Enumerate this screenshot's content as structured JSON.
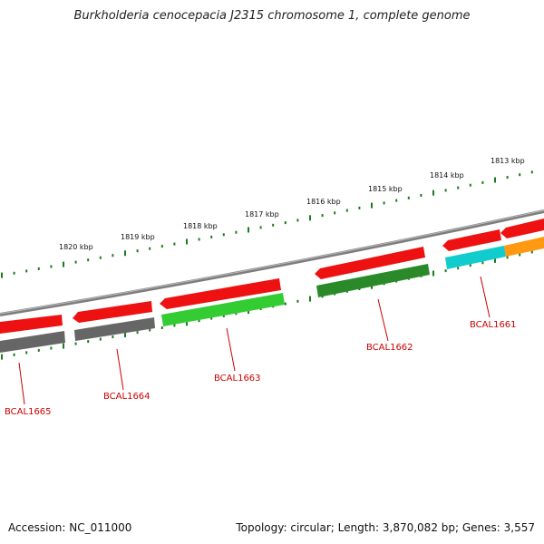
{
  "title": "Burkholderia cenocepacia J2315 chromosome 1, complete genome",
  "footer": {
    "accession": "Accession: NC_011000",
    "summary": "Topology: circular; Length: 3,870,082 bp; Genes: 3,557"
  },
  "ticks": [
    {
      "label": "1813 kbp",
      "kbp": 1813
    },
    {
      "label": "1814 kbp",
      "kbp": 1814
    },
    {
      "label": "1815 kbp",
      "kbp": 1815
    },
    {
      "label": "1816 kbp",
      "kbp": 1816
    },
    {
      "label": "1817 kbp",
      "kbp": 1817
    },
    {
      "label": "1818 kbp",
      "kbp": 1818
    },
    {
      "label": "1819 kbp",
      "kbp": 1819
    },
    {
      "label": "1820 kbp",
      "kbp": 1820
    }
  ],
  "colors": {
    "backbone": "#8a8a8a",
    "tick": "#1e7a1e",
    "gene_red": "#ee1111",
    "gene_gray": "#666666",
    "gene_green": "#33cc33",
    "gene_darkgreen": "#2a8a2a",
    "gene_cyan": "#11cccc",
    "gene_orange": "#ff9911",
    "label": "#cc0000"
  },
  "genes": [
    {
      "name": "BCAL1661"
    },
    {
      "name": "BCAL1662"
    },
    {
      "name": "BCAL1663"
    },
    {
      "name": "BCAL1664"
    },
    {
      "name": "BCAL1665"
    }
  ]
}
